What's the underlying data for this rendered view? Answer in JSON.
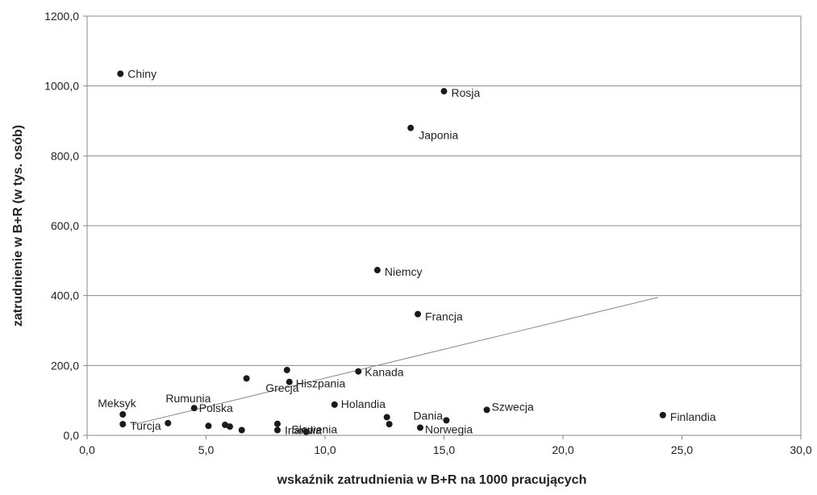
{
  "chart_data": {
    "type": "scatter",
    "xlabel": "wskaźnik zatrudnienia w B+R na 1000 pracujących",
    "ylabel": "zatrudnienie w B+R (w tys. osób)",
    "xlim": [
      0,
      30
    ],
    "ylim": [
      0,
      1200
    ],
    "x_ticks": [
      "0,0",
      "5,0",
      "10,0",
      "15,0",
      "20,0",
      "25,0",
      "30,0"
    ],
    "y_ticks": [
      "0,0",
      "200,0",
      "400,0",
      "600,0",
      "800,0",
      "1000,0",
      "1200,0"
    ],
    "grid": "horizontal",
    "points": [
      {
        "x": 1.4,
        "y": 1035,
        "label": "Chiny"
      },
      {
        "x": 15.0,
        "y": 985,
        "label": "Rosja"
      },
      {
        "x": 13.6,
        "y": 880,
        "label": "Japonia"
      },
      {
        "x": 12.2,
        "y": 473,
        "label": "Niemcy"
      },
      {
        "x": 13.9,
        "y": 347,
        "label": "Francja"
      },
      {
        "x": 11.4,
        "y": 183,
        "label": "Kanada"
      },
      {
        "x": 8.4,
        "y": 187,
        "label": ""
      },
      {
        "x": 8.5,
        "y": 153,
        "label": "Hiszpania"
      },
      {
        "x": 6.7,
        "y": 163,
        "label": ""
      },
      {
        "x": 10.4,
        "y": 88,
        "label": "Holandia"
      },
      {
        "x": 24.2,
        "y": 58,
        "label": "Finlandia"
      },
      {
        "x": 16.8,
        "y": 73,
        "label": "Szwecja"
      },
      {
        "x": 15.1,
        "y": 43,
        "label": "Dania"
      },
      {
        "x": 12.6,
        "y": 52,
        "label": ""
      },
      {
        "x": 12.7,
        "y": 32,
        "label": ""
      },
      {
        "x": 14.0,
        "y": 22,
        "label": "Norwegia"
      },
      {
        "x": 9.2,
        "y": 10,
        "label": "Słowenia"
      },
      {
        "x": 8.0,
        "y": 33,
        "label": ""
      },
      {
        "x": 8.0,
        "y": 15,
        "label": "Irlandia"
      },
      {
        "x": 6.5,
        "y": 15,
        "label": ""
      },
      {
        "x": 6.0,
        "y": 25,
        "label": ""
      },
      {
        "x": 5.8,
        "y": 30,
        "label": ""
      },
      {
        "x": 5.1,
        "y": 27,
        "label": ""
      },
      {
        "x": 4.5,
        "y": 78,
        "label": "Polska"
      },
      {
        "x": 3.4,
        "y": 35,
        "label": ""
      },
      {
        "x": 1.5,
        "y": 60,
        "label": "Meksyk"
      },
      {
        "x": 1.5,
        "y": 32,
        "label": "Turcja"
      }
    ],
    "extra_labels": [
      {
        "text": "Grecja",
        "x": 7.5,
        "y": 125
      },
      {
        "text": "Rumunia",
        "x": 3.3,
        "y": 95
      }
    ],
    "trendline": {
      "x": [
        1.9,
        24.0
      ],
      "y": [
        30,
        395
      ]
    }
  }
}
